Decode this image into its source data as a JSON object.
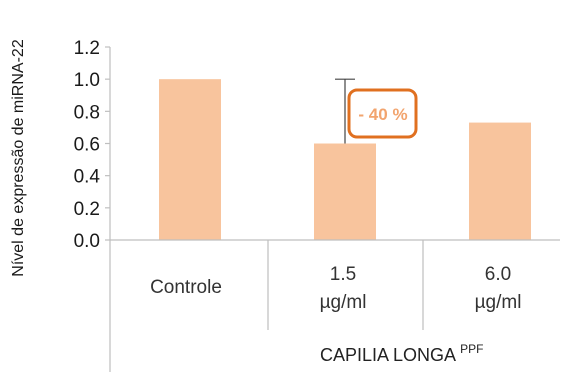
{
  "chart_data": {
    "type": "bar",
    "ylabel": "Nível de expressão de miRNA-22",
    "ylim": [
      0,
      1.2
    ],
    "y_ticks": [
      "0.0",
      "0.2",
      "0.4",
      "0.6",
      "0.8",
      "1.0",
      "1.2"
    ],
    "grid": false,
    "bar_color": "#f8c49d",
    "categories": [
      {
        "label": "Controle",
        "lines": [
          "Controle"
        ],
        "color": "#c9672a"
      },
      {
        "label": "1.5 µg/ml",
        "lines": [
          "1.5",
          "µg/ml"
        ],
        "color": "#333333"
      },
      {
        "label": "6.0 µg/ml",
        "lines": [
          "6.0",
          "µg/ml"
        ],
        "color": "#333333"
      }
    ],
    "values": [
      1.0,
      0.6,
      0.73
    ],
    "group_label": {
      "text": "CAPILIA LONGA",
      "superscript": "PPF"
    },
    "annotation": {
      "text": "- 40 %",
      "from": 1.0,
      "to": 0.6,
      "bar_index": 1,
      "border_color": "#e07020",
      "text_color": "#f2a46e"
    }
  }
}
